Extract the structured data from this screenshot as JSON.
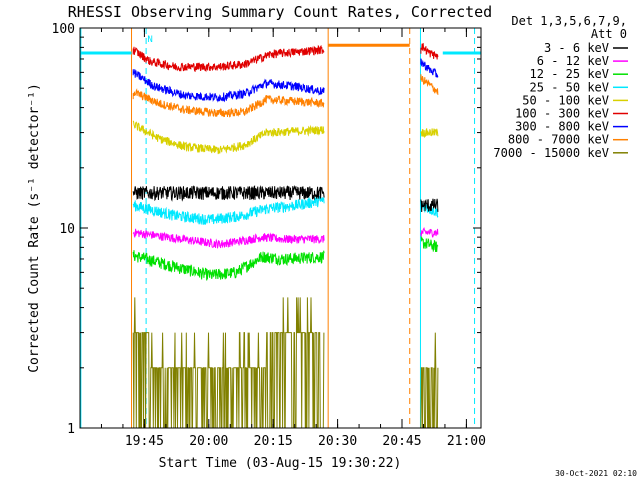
{
  "chart_data": {
    "type": "line",
    "title": "RHESSI Observing Summary Count Rates, Corrected",
    "xlabel": "Start Time (03-Aug-15 19:30:22)",
    "ylabel": "Corrected Count Rate (s⁻¹ detector⁻¹)",
    "yscale": "log",
    "ylim": [
      1,
      100
    ],
    "xlim_minutes": [
      19.6,
      113
    ],
    "x_unit": "minutes after 19:30:22",
    "yticks": [
      {
        "value": 1,
        "label": "1"
      },
      {
        "value": 10,
        "label": "10"
      },
      {
        "value": 100,
        "label": "100"
      }
    ],
    "xticks": [
      {
        "value": 34.6,
        "label": "19:45"
      },
      {
        "value": 49.6,
        "label": "20:00"
      },
      {
        "value": 64.6,
        "label": "20:15"
      },
      {
        "value": 79.6,
        "label": "20:30"
      },
      {
        "value": 94.6,
        "label": "20:45"
      },
      {
        "value": 109.6,
        "label": "21:00"
      }
    ],
    "legend": {
      "placement": "right",
      "header": [
        "Det 1,3,5,6,7,9,",
        "Att 0"
      ],
      "entries": [
        {
          "label": "3 - 6 keV",
          "color": "#000000"
        },
        {
          "label": "6 - 12 keV",
          "color": "#ff00ff"
        },
        {
          "label": "12 - 25 keV",
          "color": "#00e000"
        },
        {
          "label": "25 - 50 keV",
          "color": "#00e8ff"
        },
        {
          "label": "50 - 100 keV",
          "color": "#d8d000"
        },
        {
          "label": "100 - 300 keV",
          "color": "#e00000"
        },
        {
          "label": "300 - 800 keV",
          "color": "#0000ff"
        },
        {
          "label": "800 - 7000 keV",
          "color": "#ff8000"
        },
        {
          "label": "7000 - 15000 keV",
          "color": "#808000"
        }
      ]
    },
    "series": [
      {
        "name": "3 - 6 keV",
        "color": "#000000",
        "noise": 1.6,
        "segments": [
          [
            [
              32,
              15
            ],
            [
              48,
              15
            ],
            [
              60,
              15
            ],
            [
              70,
              15
            ],
            [
              76.5,
              15
            ]
          ],
          [
            [
              99,
              13
            ],
            [
              103,
              13
            ]
          ]
        ]
      },
      {
        "name": "6 - 12 keV",
        "color": "#ff00ff",
        "noise": 1.0,
        "segments": [
          [
            [
              32,
              9.5
            ],
            [
              45,
              8.7
            ],
            [
              52,
              8.3
            ],
            [
              57,
              8.6
            ],
            [
              62,
              9.0
            ],
            [
              67,
              8.8
            ],
            [
              76.5,
              8.8
            ]
          ],
          [
            [
              99,
              9.5
            ],
            [
              103,
              9.5
            ]
          ]
        ]
      },
      {
        "name": "12 - 25 keV",
        "color": "#00e000",
        "noise": 1.4,
        "segments": [
          [
            [
              32,
              7.3
            ],
            [
              43,
              6.3
            ],
            [
              50,
              5.8
            ],
            [
              56,
              6.0
            ],
            [
              62,
              7.2
            ],
            [
              67,
              7.0
            ],
            [
              76.5,
              7.2
            ]
          ],
          [
            [
              99,
              8.5
            ],
            [
              103,
              8.0
            ]
          ]
        ]
      },
      {
        "name": "25 - 50 keV",
        "color": "#00e8ff",
        "noise": 1.3,
        "segments": [
          [
            [
              32,
              13
            ],
            [
              42,
              11.5
            ],
            [
              50,
              11.0
            ],
            [
              57,
              11.5
            ],
            [
              63,
              12.5
            ],
            [
              70,
              13.0
            ],
            [
              76.5,
              13.8
            ]
          ],
          [
            [
              99,
              13
            ],
            [
              103,
              12
            ]
          ]
        ]
      },
      {
        "name": "50 - 100 keV",
        "color": "#d8d000",
        "noise": 1.0,
        "segments": [
          [
            [
              32,
              33
            ],
            [
              38,
              28
            ],
            [
              44,
              25.5
            ],
            [
              52,
              24.5
            ],
            [
              58,
              26
            ],
            [
              63,
              30
            ],
            [
              70,
              30.5
            ],
            [
              76.5,
              31
            ]
          ],
          [
            [
              99,
              30
            ],
            [
              103,
              30
            ]
          ]
        ]
      },
      {
        "name": "100 - 300 keV",
        "color": "#e00000",
        "noise": 1.0,
        "segments": [
          [
            [
              32,
              78
            ],
            [
              36,
              68
            ],
            [
              42,
              64
            ],
            [
              52,
              64
            ],
            [
              58,
              66
            ],
            [
              64,
              74
            ],
            [
              70,
              76
            ],
            [
              76.5,
              78
            ]
          ],
          [
            [
              99,
              82
            ],
            [
              101,
              75
            ],
            [
              103,
              72
            ]
          ]
        ]
      },
      {
        "name": "300 - 800 keV",
        "color": "#0000ff",
        "noise": 1.0,
        "segments": [
          [
            [
              32,
              60
            ],
            [
              37,
              51
            ],
            [
              44,
              46
            ],
            [
              52,
              45
            ],
            [
              58,
              47
            ],
            [
              63,
              53
            ],
            [
              70,
              51
            ],
            [
              76.5,
              48
            ]
          ],
          [
            [
              99,
              68
            ],
            [
              101,
              62
            ],
            [
              103,
              58
            ]
          ]
        ]
      },
      {
        "name": "800 - 7000 keV",
        "color": "#ff8000",
        "noise": 1.0,
        "segments": [
          [
            [
              32,
              48
            ],
            [
              38,
              42
            ],
            [
              44,
              39
            ],
            [
              52,
              37.5
            ],
            [
              58,
              38
            ],
            [
              63,
              44
            ],
            [
              70,
              43
            ],
            [
              76.5,
              42
            ]
          ],
          [
            [
              99,
              56
            ],
            [
              101,
              52
            ],
            [
              103,
              48
            ]
          ]
        ]
      },
      {
        "name": "7000 - 15000 keV",
        "color": "#808000",
        "noise": 0,
        "segments": [
          [
            [
              32,
              3
            ],
            [
              36,
              3
            ],
            [
              36,
              2
            ],
            [
              50,
              2
            ],
            [
              50,
              2
            ],
            [
              63,
              2
            ],
            [
              63,
              3
            ],
            [
              76.5,
              3
            ]
          ],
          [
            [
              99,
              2
            ],
            [
              103,
              2
            ]
          ]
        ]
      }
    ],
    "flags": [
      {
        "label": "N",
        "color": "#00e8ff",
        "x": 35.3,
        "y": 85
      }
    ],
    "saa_bars": [
      {
        "x": [
          19.6,
          31.6
        ],
        "y": 75,
        "color": "#00e8ff"
      },
      {
        "x": [
          104.1,
          113
        ],
        "y": 75,
        "color": "#00e8ff"
      }
    ],
    "night_bar": {
      "x": [
        77.4,
        96.4
      ],
      "y": 82,
      "color": "#ff8000"
    },
    "vertical_lines": [
      {
        "x": 31.6,
        "color": "#ff8000",
        "style": "solid"
      },
      {
        "x": 77.4,
        "color": "#ff8000",
        "style": "solid"
      },
      {
        "x": 96.4,
        "color": "#ff8000",
        "style": "dashed"
      },
      {
        "x": 35.0,
        "color": "#00e8ff",
        "style": "dashed"
      },
      {
        "x": 98.9,
        "color": "#00e8ff",
        "style": "solid"
      },
      {
        "x": 111.5,
        "color": "#00e8ff",
        "style": "dashed"
      },
      {
        "x": 19.8,
        "color": "#00e8ff",
        "style": "solid"
      }
    ],
    "footer": "30-Oct-2021 02:10"
  }
}
